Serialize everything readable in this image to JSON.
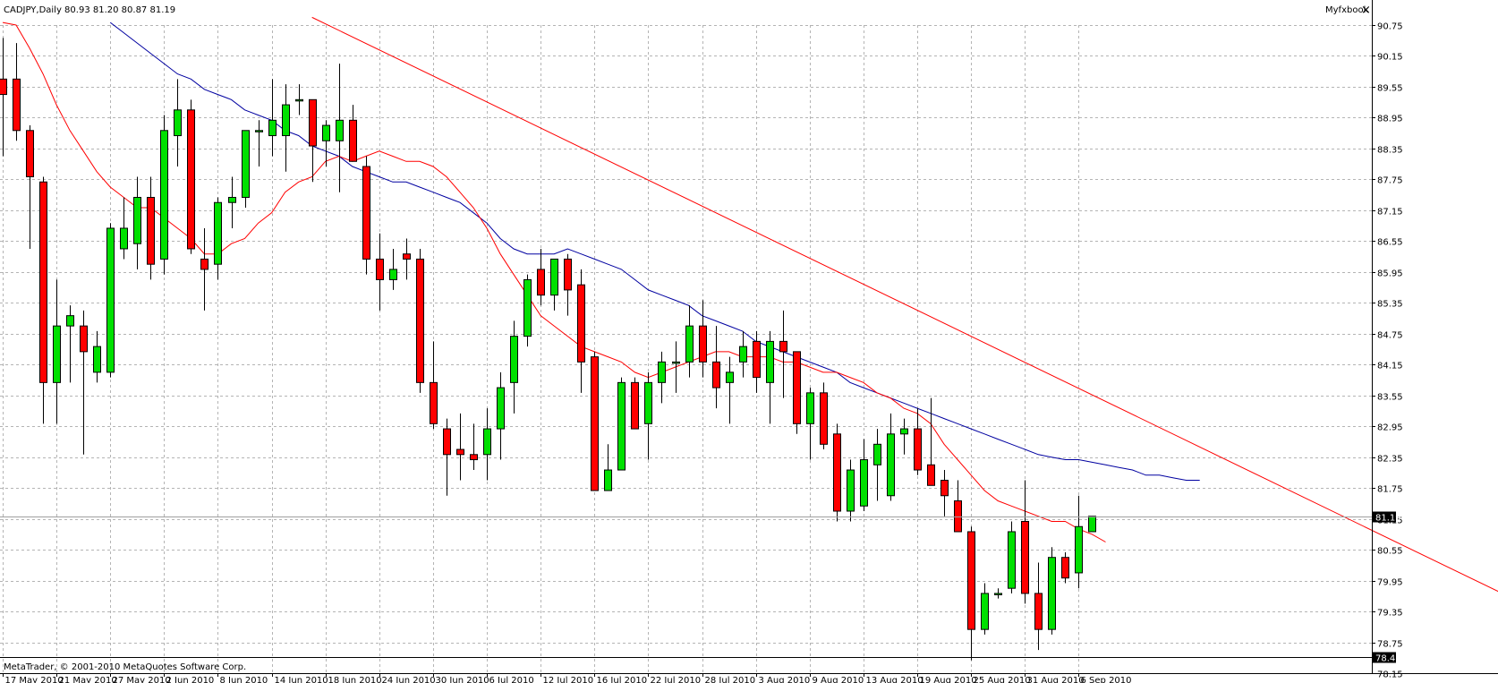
{
  "window": {
    "symbol_header": "CADJPY,Daily  80.93 81.20 80.87 81.19",
    "tab_label": "Myfxbook",
    "close_glyph": "×",
    "footer": "MetaTrader, © 2001-2010 MetaQuotes Software Corp."
  },
  "colors": {
    "bull": "#00e000",
    "bear": "#ff0000",
    "wick": "#000000",
    "ma_fast": "#ff0000",
    "ma_slow": "#0000a0",
    "trendline": "#ff0000",
    "grid": "#b4b4b4",
    "current_price_label_bg": "#000000"
  },
  "chart_data": {
    "type": "candlestick",
    "title": "CADJPY,Daily",
    "ohlc_header": "80.93 81.20 80.87 81.19",
    "grid": true,
    "ylim": [
      78.15,
      90.75
    ],
    "y_ticks": [
      "90.75",
      "90.15",
      "89.55",
      "88.95",
      "88.35",
      "87.75",
      "87.15",
      "86.55",
      "85.95",
      "85.35",
      "84.75",
      "84.15",
      "83.55",
      "82.95",
      "82.35",
      "81.75",
      "81.15",
      "80.55",
      "79.95",
      "79.35",
      "78.75",
      "78.15"
    ],
    "current_price": "81.19",
    "bottom_price": "78.47",
    "x_tick_labels": [
      {
        "i": 0,
        "text": "17 May 2010"
      },
      {
        "i": 4,
        "text": "21 May 2010"
      },
      {
        "i": 8,
        "text": "27 May 2010"
      },
      {
        "i": 12,
        "text": "2 Jun 2010"
      },
      {
        "i": 16,
        "text": "8 Jun 2010"
      },
      {
        "i": 20,
        "text": "14 Jun 2010"
      },
      {
        "i": 24,
        "text": "18 Jun 2010"
      },
      {
        "i": 28,
        "text": "24 Jun 2010"
      },
      {
        "i": 32,
        "text": "30 Jun 2010"
      },
      {
        "i": 36,
        "text": "6 Jul 2010"
      },
      {
        "i": 40,
        "text": "12 Jul 2010"
      },
      {
        "i": 44,
        "text": "16 Jul 2010"
      },
      {
        "i": 48,
        "text": "22 Jul 2010"
      },
      {
        "i": 52,
        "text": "28 Jul 2010"
      },
      {
        "i": 56,
        "text": "3 Aug 2010"
      },
      {
        "i": 60,
        "text": "9 Aug 2010"
      },
      {
        "i": 64,
        "text": "13 Aug 2010"
      },
      {
        "i": 68,
        "text": "19 Aug 2010"
      },
      {
        "i": 72,
        "text": "25 Aug 2010"
      },
      {
        "i": 76,
        "text": "31 Aug 2010"
      },
      {
        "i": 80,
        "text": "6 Sep 2010"
      }
    ],
    "candles": [
      [
        89.7,
        90.5,
        88.2,
        89.4
      ],
      [
        89.7,
        90.4,
        88.5,
        88.7
      ],
      [
        88.7,
        88.8,
        86.4,
        87.8
      ],
      [
        87.7,
        87.8,
        83.0,
        83.8
      ],
      [
        83.8,
        85.8,
        83.0,
        84.9
      ],
      [
        84.9,
        85.3,
        83.8,
        85.1
      ],
      [
        84.9,
        85.2,
        82.4,
        84.4
      ],
      [
        84.0,
        84.8,
        83.8,
        84.5
      ],
      [
        84.0,
        86.9,
        83.9,
        86.8
      ],
      [
        86.4,
        87.4,
        86.2,
        86.8
      ],
      [
        86.5,
        87.8,
        86.0,
        87.4
      ],
      [
        87.4,
        87.8,
        85.8,
        86.1
      ],
      [
        86.2,
        89.0,
        85.9,
        88.7
      ],
      [
        88.6,
        89.7,
        88.0,
        89.1
      ],
      [
        89.1,
        89.3,
        86.3,
        86.4
      ],
      [
        86.2,
        86.8,
        85.2,
        86.0
      ],
      [
        86.1,
        87.4,
        85.8,
        87.3
      ],
      [
        87.3,
        87.8,
        86.8,
        87.4
      ],
      [
        87.4,
        88.6,
        87.2,
        88.7
      ],
      [
        88.7,
        88.9,
        88.0,
        88.7
      ],
      [
        88.6,
        89.7,
        88.2,
        88.9
      ],
      [
        88.6,
        89.6,
        87.9,
        89.2
      ],
      [
        89.3,
        89.6,
        89.0,
        89.3
      ],
      [
        89.3,
        89.3,
        87.7,
        88.4
      ],
      [
        88.5,
        88.9,
        88.0,
        88.8
      ],
      [
        88.5,
        90.0,
        87.5,
        88.9
      ],
      [
        88.9,
        89.2,
        88.1,
        88.1
      ],
      [
        88.0,
        88.2,
        85.9,
        86.2
      ],
      [
        86.2,
        86.7,
        85.2,
        85.8
      ],
      [
        85.8,
        86.4,
        85.6,
        86.0
      ],
      [
        86.3,
        86.6,
        85.8,
        86.2
      ],
      [
        86.2,
        86.4,
        83.6,
        83.8
      ],
      [
        83.8,
        84.6,
        82.9,
        83.0
      ],
      [
        82.9,
        83.1,
        81.6,
        82.4
      ],
      [
        82.5,
        83.2,
        81.9,
        82.4
      ],
      [
        82.4,
        83.0,
        82.1,
        82.3
      ],
      [
        82.4,
        83.3,
        81.9,
        82.9
      ],
      [
        82.9,
        84.0,
        82.3,
        83.7
      ],
      [
        83.8,
        85.0,
        83.2,
        84.7
      ],
      [
        84.7,
        85.9,
        84.5,
        85.8
      ],
      [
        86.0,
        86.4,
        85.3,
        85.5
      ],
      [
        85.5,
        86.2,
        85.2,
        86.2
      ],
      [
        86.2,
        86.3,
        85.1,
        85.6
      ],
      [
        85.7,
        86.0,
        83.6,
        84.2
      ],
      [
        84.3,
        84.4,
        81.7,
        81.7
      ],
      [
        81.7,
        82.6,
        81.7,
        82.1
      ],
      [
        82.1,
        83.9,
        82.1,
        83.8
      ],
      [
        83.8,
        83.9,
        82.9,
        82.9
      ],
      [
        83.0,
        84.0,
        82.3,
        83.8
      ],
      [
        83.8,
        84.4,
        83.4,
        84.2
      ],
      [
        84.2,
        84.6,
        83.6,
        84.2
      ],
      [
        84.2,
        85.3,
        83.9,
        84.9
      ],
      [
        84.9,
        85.4,
        83.9,
        84.2
      ],
      [
        84.2,
        84.9,
        83.3,
        83.7
      ],
      [
        83.8,
        84.3,
        83.0,
        84.0
      ],
      [
        84.2,
        84.8,
        83.9,
        84.5
      ],
      [
        84.6,
        84.8,
        83.6,
        83.9
      ],
      [
        83.8,
        84.8,
        83.0,
        84.6
      ],
      [
        84.6,
        85.2,
        83.5,
        84.4
      ],
      [
        84.4,
        84.4,
        82.8,
        83.0
      ],
      [
        83.0,
        83.7,
        82.3,
        83.6
      ],
      [
        83.6,
        83.8,
        82.5,
        82.6
      ],
      [
        82.8,
        83.0,
        81.1,
        81.3
      ],
      [
        81.3,
        82.3,
        81.1,
        82.1
      ],
      [
        81.4,
        82.7,
        81.3,
        82.3
      ],
      [
        82.2,
        82.9,
        81.5,
        82.6
      ],
      [
        81.6,
        83.2,
        81.5,
        82.8
      ],
      [
        82.8,
        83.1,
        82.4,
        82.9
      ],
      [
        82.9,
        83.3,
        82.0,
        82.1
      ],
      [
        82.2,
        83.5,
        81.9,
        81.8
      ],
      [
        81.9,
        82.1,
        81.2,
        81.6
      ],
      [
        81.5,
        81.9,
        80.9,
        80.9
      ],
      [
        80.9,
        81.0,
        78.4,
        79.0
      ],
      [
        79.0,
        79.9,
        78.9,
        79.7
      ],
      [
        79.7,
        79.8,
        79.6,
        79.7
      ],
      [
        79.8,
        81.1,
        79.7,
        80.9
      ],
      [
        81.1,
        81.9,
        79.5,
        79.7
      ],
      [
        79.7,
        80.3,
        78.6,
        79.0
      ],
      [
        79.0,
        80.6,
        78.9,
        80.4
      ],
      [
        80.4,
        80.5,
        79.9,
        80.0
      ],
      [
        80.1,
        81.6,
        79.8,
        81.0
      ],
      [
        80.9,
        81.2,
        80.9,
        81.2
      ]
    ],
    "series": [
      {
        "key": "ma_fast",
        "values": [
          90.8,
          90.75,
          90.3,
          89.8,
          89.2,
          88.7,
          88.3,
          87.9,
          87.6,
          87.4,
          87.2,
          87.2,
          87.0,
          86.8,
          86.6,
          86.3,
          86.3,
          86.5,
          86.6,
          86.9,
          87.1,
          87.5,
          87.7,
          87.8,
          88.1,
          88.2,
          88.1,
          88.2,
          88.3,
          88.2,
          88.1,
          88.1,
          88.0,
          87.8,
          87.5,
          87.2,
          86.8,
          86.3,
          85.9,
          85.5,
          85.1,
          84.9,
          84.7,
          84.5,
          84.4,
          84.3,
          84.2,
          84.0,
          83.9,
          84.0,
          84.1,
          84.2,
          84.3,
          84.4,
          84.4,
          84.3,
          84.3,
          84.3,
          84.2,
          84.2,
          84.1,
          84.0,
          84.0,
          83.9,
          83.8,
          83.6,
          83.5,
          83.3,
          83.2,
          83.0,
          82.6,
          82.3,
          82.0,
          81.7,
          81.5,
          81.4,
          81.3,
          81.2,
          81.1,
          81.1,
          80.95,
          80.85,
          80.7
        ]
      },
      {
        "key": "ma_slow",
        "start": 8,
        "values": [
          90.8,
          90.6,
          90.4,
          90.2,
          90.0,
          89.8,
          89.7,
          89.5,
          89.4,
          89.3,
          89.1,
          89.0,
          88.9,
          88.7,
          88.6,
          88.4,
          88.3,
          88.2,
          88.0,
          87.9,
          87.8,
          87.7,
          87.7,
          87.6,
          87.5,
          87.4,
          87.3,
          87.1,
          86.9,
          86.6,
          86.4,
          86.3,
          86.3,
          86.3,
          86.4,
          86.3,
          86.2,
          86.1,
          86.0,
          85.8,
          85.6,
          85.5,
          85.4,
          85.3,
          85.1,
          85.0,
          84.9,
          84.8,
          84.6,
          84.5,
          84.4,
          84.3,
          84.2,
          84.1,
          84.0,
          83.8,
          83.7,
          83.6,
          83.5,
          83.4,
          83.3,
          83.2,
          83.1,
          83.0,
          82.9,
          82.8,
          82.7,
          82.6,
          82.5,
          82.4,
          82.35,
          82.3,
          82.3,
          82.25,
          82.2,
          82.15,
          82.1,
          82.0,
          82.0,
          81.95,
          81.9,
          81.9
        ]
      },
      {
        "key": "trendline",
        "points": [
          [
            23.0,
            90.9
          ],
          [
            111.5,
            79.7
          ]
        ]
      }
    ]
  }
}
